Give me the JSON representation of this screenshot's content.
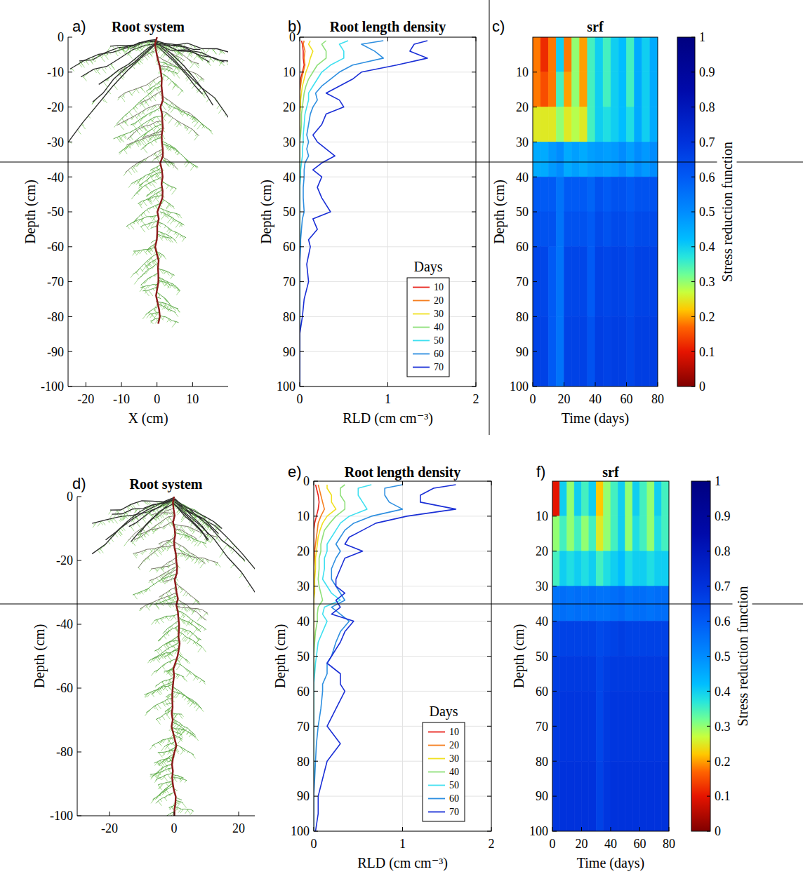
{
  "chart_data": [
    {
      "type": "root_system",
      "panel": "a)",
      "title": "Root system",
      "xlabel": "X (cm)",
      "ylabel": "Depth (cm)",
      "xlim": [
        -25,
        20
      ],
      "xticks": [
        -20,
        -10,
        0,
        10
      ],
      "ylim": [
        -100,
        0
      ],
      "yticks": [
        -100,
        -90,
        -80,
        -70,
        -60,
        -50,
        -40,
        -30,
        -20,
        -10,
        0
      ],
      "max_depth": -82
    },
    {
      "type": "line",
      "panel": "b)",
      "title": "Root length density",
      "xlabel": "Depth (cm)",
      "ylabel": "RLD (cm cm⁻³)",
      "orientation": "horizontal",
      "grid": true,
      "legend": "lower right",
      "legend_title": "Days",
      "xlim": [
        0,
        100
      ],
      "xticks": [
        0,
        10,
        20,
        30,
        40,
        50,
        60,
        70,
        80,
        90,
        100
      ],
      "ylim": [
        0,
        2
      ],
      "yticks": [
        0,
        1,
        2
      ],
      "x": [
        1,
        2,
        4,
        6,
        8,
        10,
        12,
        14,
        16,
        18,
        20,
        22,
        25,
        28,
        30,
        32,
        34,
        36,
        38,
        40,
        43,
        46,
        50,
        52,
        55,
        58,
        60,
        65,
        70,
        75,
        80,
        85,
        90,
        95,
        100
      ],
      "series": [
        {
          "name": "10",
          "color": "#e8211a",
          "values": [
            0.02,
            0.03,
            0.04,
            0.04,
            0.05,
            0.03,
            0.01,
            0,
            0,
            0,
            0,
            0,
            0,
            0,
            0,
            0,
            0,
            0,
            0,
            0,
            0,
            0,
            0,
            0,
            0,
            0,
            0,
            0,
            0,
            0,
            0,
            0,
            0,
            0,
            0
          ]
        },
        {
          "name": "20",
          "color": "#f57f20",
          "values": [
            0.05,
            0.04,
            0.06,
            0.05,
            0.06,
            0.04,
            0.02,
            0.01,
            0,
            0,
            0,
            0,
            0,
            0,
            0,
            0,
            0,
            0,
            0,
            0,
            0,
            0,
            0,
            0,
            0,
            0,
            0,
            0,
            0,
            0,
            0,
            0,
            0,
            0,
            0
          ]
        },
        {
          "name": "30",
          "color": "#f0e020",
          "values": [
            0.12,
            0.1,
            0.15,
            0.12,
            0.1,
            0.07,
            0.05,
            0.03,
            0.02,
            0.01,
            0.01,
            0,
            0,
            0,
            0,
            0,
            0,
            0,
            0,
            0,
            0,
            0,
            0,
            0,
            0,
            0,
            0,
            0,
            0,
            0,
            0,
            0,
            0,
            0,
            0
          ]
        },
        {
          "name": "40",
          "color": "#8fe07a",
          "values": [
            0.3,
            0.25,
            0.3,
            0.3,
            0.2,
            0.15,
            0.1,
            0.07,
            0.05,
            0.04,
            0.03,
            0.02,
            0.02,
            0.01,
            0,
            0,
            0,
            0,
            0,
            0,
            0,
            0,
            0,
            0,
            0,
            0,
            0,
            0,
            0,
            0,
            0,
            0,
            0,
            0,
            0
          ]
        },
        {
          "name": "50",
          "color": "#40e0f0",
          "values": [
            0.55,
            0.45,
            0.5,
            0.5,
            0.35,
            0.25,
            0.2,
            0.15,
            0.1,
            0.1,
            0.08,
            0.06,
            0.05,
            0.04,
            0.04,
            0.03,
            0.03,
            0.02,
            0.01,
            0.01,
            0,
            0,
            0,
            0,
            0,
            0,
            0,
            0,
            0,
            0,
            0,
            0,
            0,
            0,
            0
          ]
        },
        {
          "name": "60",
          "color": "#2e8fe0",
          "values": [
            0.95,
            0.7,
            0.85,
            0.95,
            0.6,
            0.45,
            0.35,
            0.25,
            0.18,
            0.2,
            0.15,
            0.12,
            0.1,
            0.08,
            0.1,
            0.08,
            0.1,
            0.06,
            0.05,
            0.05,
            0.04,
            0.04,
            0.05,
            0.03,
            0.02,
            0.01,
            0.01,
            0,
            0,
            0,
            0,
            0,
            0,
            0,
            0
          ]
        },
        {
          "name": "70",
          "color": "#1a2fd6",
          "values": [
            1.45,
            1.3,
            1.25,
            1.45,
            1.1,
            0.7,
            0.6,
            0.45,
            0.3,
            0.45,
            0.5,
            0.3,
            0.25,
            0.15,
            0.2,
            0.3,
            0.4,
            0.25,
            0.15,
            0.25,
            0.2,
            0.25,
            0.35,
            0.15,
            0.2,
            0.1,
            0.12,
            0.08,
            0.1,
            0.05,
            0.03,
            0,
            0,
            0,
            0
          ]
        }
      ]
    },
    {
      "type": "heatmap",
      "panel": "c)",
      "title": "srf",
      "xlabel": "Time (days)",
      "ylabel": "Depth (cm)",
      "xlim": [
        0,
        80
      ],
      "xticks": [
        0,
        20,
        40,
        60,
        80
      ],
      "ylim": [
        0,
        100
      ],
      "yticks": [
        10,
        20,
        30,
        40,
        50,
        60,
        70,
        80,
        90,
        100
      ],
      "x_edges": [
        0,
        5,
        10,
        15,
        20,
        25,
        30,
        35,
        40,
        45,
        50,
        55,
        60,
        65,
        70,
        75,
        80
      ],
      "y_edges": [
        0,
        10,
        20,
        30,
        40,
        50,
        60,
        80,
        100
      ],
      "cells": [
        [
          0.18,
          0.12,
          0.18,
          0.4,
          0.18,
          0.3,
          0.2,
          0.35,
          0.4,
          0.35,
          0.4,
          0.42,
          0.35,
          0.45,
          0.4,
          0.45
        ],
        [
          0.18,
          0.15,
          0.18,
          0.35,
          0.2,
          0.3,
          0.2,
          0.35,
          0.4,
          0.35,
          0.4,
          0.42,
          0.35,
          0.45,
          0.4,
          0.45
        ],
        [
          0.25,
          0.25,
          0.25,
          0.3,
          0.25,
          0.28,
          0.25,
          0.35,
          0.4,
          0.38,
          0.4,
          0.42,
          0.38,
          0.45,
          0.4,
          0.45
        ],
        [
          0.45,
          0.45,
          0.48,
          0.5,
          0.45,
          0.47,
          0.45,
          0.47,
          0.48,
          0.47,
          0.48,
          0.5,
          0.47,
          0.5,
          0.48,
          0.5
        ],
        [
          0.6,
          0.6,
          0.6,
          0.55,
          0.6,
          0.6,
          0.6,
          0.58,
          0.62,
          0.6,
          0.62,
          0.62,
          0.6,
          0.62,
          0.62,
          0.62
        ],
        [
          0.62,
          0.62,
          0.62,
          0.55,
          0.62,
          0.62,
          0.62,
          0.6,
          0.64,
          0.62,
          0.64,
          0.64,
          0.62,
          0.64,
          0.64,
          0.64
        ],
        [
          0.65,
          0.65,
          0.6,
          0.55,
          0.65,
          0.65,
          0.65,
          0.6,
          0.66,
          0.65,
          0.66,
          0.66,
          0.64,
          0.66,
          0.66,
          0.66
        ],
        [
          0.66,
          0.66,
          0.6,
          0.55,
          0.66,
          0.66,
          0.66,
          0.62,
          0.67,
          0.66,
          0.67,
          0.67,
          0.65,
          0.67,
          0.67,
          0.67
        ]
      ],
      "colorbar": {
        "label": "Stress reduction function",
        "lim": [
          0,
          1
        ],
        "ticks": [
          0,
          0.1,
          0.2,
          0.3,
          0.4,
          0.5,
          0.6,
          0.7,
          0.8,
          0.9,
          1
        ]
      }
    },
    {
      "type": "root_system",
      "panel": "d)",
      "title": "Root system",
      "ylabel": "Depth (cm)",
      "xlim": [
        -30,
        25
      ],
      "xticks": [
        -20,
        0,
        20
      ],
      "ylim": [
        -100,
        0
      ],
      "yticks": [
        -100,
        -80,
        -60,
        -40,
        -20,
        0
      ],
      "max_depth": -100
    },
    {
      "type": "line",
      "panel": "e)",
      "title": "Root length density",
      "xlabel": "Depth (cm)",
      "ylabel": "RLD (cm cm⁻³)",
      "orientation": "horizontal",
      "grid": true,
      "legend": "lower right",
      "legend_title": "Days",
      "xlim": [
        0,
        100
      ],
      "xticks": [
        0,
        10,
        20,
        30,
        40,
        50,
        60,
        70,
        80,
        90,
        100
      ],
      "ylim": [
        0,
        2
      ],
      "yticks": [
        0,
        1,
        2
      ],
      "x": [
        1,
        2,
        4,
        6,
        8,
        10,
        12,
        14,
        16,
        18,
        20,
        22,
        25,
        28,
        30,
        32,
        34,
        36,
        38,
        40,
        43,
        46,
        50,
        52,
        55,
        58,
        60,
        65,
        70,
        75,
        80,
        85,
        90,
        95,
        100
      ],
      "series": [
        {
          "name": "10",
          "color": "#e8211a",
          "values": [
            0.02,
            0.03,
            0.05,
            0.06,
            0.05,
            0.03,
            0.01,
            0,
            0,
            0,
            0,
            0,
            0,
            0,
            0,
            0,
            0,
            0,
            0,
            0,
            0,
            0,
            0,
            0,
            0,
            0,
            0,
            0,
            0,
            0,
            0,
            0,
            0,
            0,
            0
          ]
        },
        {
          "name": "20",
          "color": "#f57f20",
          "values": [
            0.05,
            0.06,
            0.08,
            0.1,
            0.12,
            0.08,
            0.05,
            0.04,
            0.03,
            0.02,
            0.01,
            0.01,
            0,
            0,
            0,
            0,
            0,
            0,
            0,
            0,
            0,
            0,
            0,
            0,
            0,
            0,
            0,
            0,
            0,
            0,
            0,
            0,
            0,
            0,
            0
          ]
        },
        {
          "name": "30",
          "color": "#f0e020",
          "values": [
            0.15,
            0.15,
            0.2,
            0.2,
            0.25,
            0.15,
            0.1,
            0.07,
            0.05,
            0.04,
            0.03,
            0.02,
            0.02,
            0.01,
            0.01,
            0.01,
            0,
            0,
            0,
            0,
            0,
            0,
            0,
            0,
            0,
            0,
            0,
            0,
            0,
            0,
            0,
            0,
            0,
            0,
            0
          ]
        },
        {
          "name": "40",
          "color": "#8fe07a",
          "values": [
            0.35,
            0.3,
            0.3,
            0.35,
            0.35,
            0.25,
            0.18,
            0.12,
            0.1,
            0.08,
            0.08,
            0.06,
            0.06,
            0.05,
            0.06,
            0.08,
            0.1,
            0.05,
            0.04,
            0.04,
            0.02,
            0.01,
            0,
            0,
            0,
            0,
            0,
            0,
            0,
            0,
            0,
            0,
            0,
            0,
            0
          ]
        },
        {
          "name": "50",
          "color": "#40e0f0",
          "values": [
            0.65,
            0.5,
            0.5,
            0.55,
            0.6,
            0.4,
            0.3,
            0.25,
            0.2,
            0.15,
            0.15,
            0.12,
            0.12,
            0.1,
            0.15,
            0.2,
            0.3,
            0.12,
            0.1,
            0.15,
            0.1,
            0.05,
            0.03,
            0.02,
            0.01,
            0,
            0,
            0,
            0,
            0,
            0,
            0,
            0,
            0,
            0
          ]
        },
        {
          "name": "60",
          "color": "#2e8fe0",
          "values": [
            1,
            0.8,
            0.8,
            0.85,
            1,
            0.65,
            0.45,
            0.35,
            0.3,
            0.25,
            0.3,
            0.25,
            0.2,
            0.2,
            0.25,
            0.3,
            0.35,
            0.2,
            0.3,
            0.4,
            0.3,
            0.25,
            0.2,
            0.15,
            0.15,
            0.1,
            0.1,
            0.08,
            0.05,
            0.03,
            0.02,
            0.01,
            0,
            0,
            0
          ]
        },
        {
          "name": "70",
          "color": "#1a2fd6",
          "values": [
            1.6,
            1.35,
            1.2,
            1.2,
            1.6,
            1.05,
            0.7,
            0.55,
            0.4,
            0.35,
            0.55,
            0.35,
            0.3,
            0.25,
            0.25,
            0.35,
            0.25,
            0.3,
            0.2,
            0.45,
            0.35,
            0.3,
            0.2,
            0.15,
            0.3,
            0.3,
            0.35,
            0.25,
            0.15,
            0.3,
            0.15,
            0.1,
            0.05,
            0.05,
            0.02
          ]
        }
      ]
    },
    {
      "type": "heatmap",
      "panel": "f)",
      "title": "srf",
      "xlabel": "Time (days)",
      "ylabel": "Depth (cm)",
      "xlim": [
        0,
        80
      ],
      "xticks": [
        0,
        20,
        40,
        60,
        80
      ],
      "ylim": [
        0,
        100
      ],
      "yticks": [
        10,
        20,
        30,
        40,
        50,
        60,
        70,
        80,
        90,
        100
      ],
      "x_edges": [
        0,
        5,
        10,
        15,
        20,
        25,
        30,
        35,
        40,
        45,
        50,
        55,
        60,
        65,
        70,
        75,
        80
      ],
      "y_edges": [
        0,
        10,
        20,
        30,
        40,
        50,
        60,
        80,
        100
      ],
      "cells": [
        [
          0.1,
          0.4,
          0.3,
          0.4,
          0.35,
          0.4,
          0.22,
          0.3,
          0.35,
          0.4,
          0.3,
          0.4,
          0.35,
          0.3,
          0.4,
          0.35
        ],
        [
          0.3,
          0.35,
          0.3,
          0.35,
          0.3,
          0.35,
          0.25,
          0.3,
          0.35,
          0.4,
          0.3,
          0.38,
          0.35,
          0.3,
          0.38,
          0.35
        ],
        [
          0.35,
          0.4,
          0.38,
          0.4,
          0.38,
          0.4,
          0.35,
          0.38,
          0.4,
          0.42,
          0.38,
          0.4,
          0.4,
          0.38,
          0.4,
          0.4
        ],
        [
          0.55,
          0.56,
          0.55,
          0.56,
          0.55,
          0.56,
          0.55,
          0.55,
          0.56,
          0.57,
          0.55,
          0.56,
          0.56,
          0.55,
          0.56,
          0.56
        ],
        [
          0.65,
          0.66,
          0.66,
          0.66,
          0.66,
          0.66,
          0.64,
          0.65,
          0.66,
          0.67,
          0.66,
          0.66,
          0.66,
          0.66,
          0.66,
          0.66
        ],
        [
          0.67,
          0.68,
          0.68,
          0.68,
          0.68,
          0.68,
          0.65,
          0.67,
          0.68,
          0.68,
          0.68,
          0.68,
          0.68,
          0.68,
          0.68,
          0.68
        ],
        [
          0.68,
          0.69,
          0.69,
          0.69,
          0.69,
          0.69,
          0.65,
          0.68,
          0.69,
          0.69,
          0.69,
          0.69,
          0.69,
          0.69,
          0.69,
          0.69
        ],
        [
          0.69,
          0.7,
          0.7,
          0.7,
          0.7,
          0.7,
          0.66,
          0.69,
          0.7,
          0.7,
          0.7,
          0.7,
          0.7,
          0.7,
          0.7,
          0.7
        ]
      ],
      "colorbar": {
        "label": "Stress reduction function",
        "lim": [
          0,
          1
        ],
        "ticks": [
          0,
          0.1,
          0.2,
          0.3,
          0.4,
          0.5,
          0.6,
          0.7,
          0.8,
          0.9,
          1
        ]
      }
    }
  ]
}
